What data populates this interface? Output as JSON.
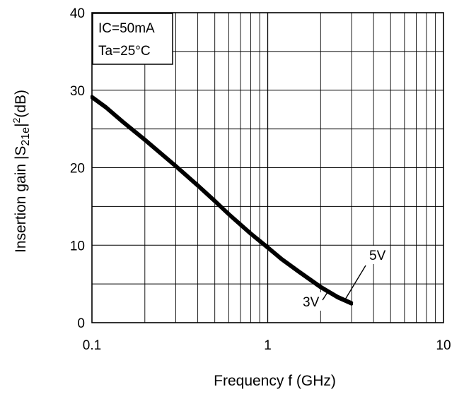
{
  "chart_data": {
    "type": "line",
    "title": "",
    "xlabel": "Frequency f (GHz)",
    "ylabel": {
      "prefix": "Insertion gain |S",
      "subscript": "21e",
      "middle": "|",
      "superscript": "2",
      "suffix": "(dB)"
    },
    "xscale": "log",
    "xlim": [
      0.1,
      10
    ],
    "ylim": [
      0,
      40
    ],
    "x_tick_labels": [
      "0.1",
      "1",
      "10"
    ],
    "y_tick_labels": [
      "0",
      "10",
      "20",
      "30",
      "40"
    ],
    "grid": true,
    "conditions": [
      "IC=50mA",
      "Ta=25°C"
    ],
    "conditions_placement": "top-left",
    "series": [
      {
        "name": "5V",
        "x": [
          0.1,
          0.12,
          0.15,
          0.2,
          0.3,
          0.4,
          0.5,
          0.6,
          0.8,
          1,
          1.2,
          1.5,
          2,
          2.5,
          3
        ],
        "y": [
          29.2,
          27.9,
          26.0,
          23.7,
          20.3,
          17.8,
          15.8,
          14.1,
          11.6,
          9.8,
          8.3,
          6.7,
          4.7,
          3.4,
          2.6
        ]
      },
      {
        "name": "3V",
        "x": [
          0.1,
          0.12,
          0.15,
          0.2,
          0.3,
          0.4,
          0.5,
          0.6,
          0.8,
          1,
          1.2,
          1.5,
          2,
          2.5,
          3
        ],
        "y": [
          29.0,
          27.7,
          25.8,
          23.5,
          20.1,
          17.6,
          15.6,
          13.9,
          11.4,
          9.6,
          8.1,
          6.5,
          4.5,
          3.2,
          2.4
        ]
      }
    ]
  }
}
